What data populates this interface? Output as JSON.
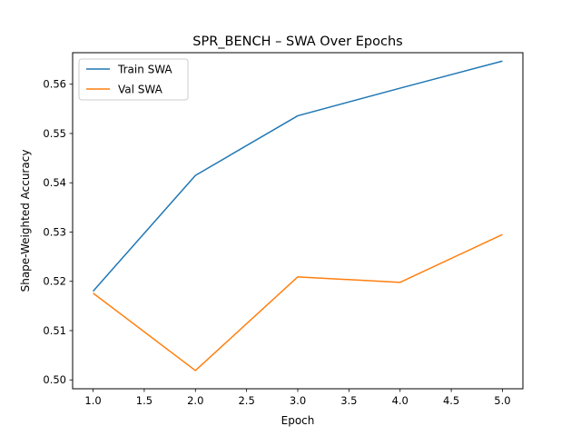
{
  "chart_data": {
    "type": "line",
    "title": "SPR_BENCH – SWA Over Epochs",
    "xlabel": "Epoch",
    "ylabel": "Shape-Weighted Accuracy",
    "xlim": [
      0.8,
      5.2
    ],
    "ylim": [
      0.4982,
      0.5664
    ],
    "xticks": [
      1.0,
      1.5,
      2.0,
      2.5,
      3.0,
      3.5,
      4.0,
      4.5,
      5.0
    ],
    "xtick_labels": [
      "1.0",
      "1.5",
      "2.0",
      "2.5",
      "3.0",
      "3.5",
      "4.0",
      "4.5",
      "5.0"
    ],
    "yticks": [
      0.5,
      0.51,
      0.52,
      0.53,
      0.54,
      0.55,
      0.56
    ],
    "ytick_labels": [
      "0.50",
      "0.51",
      "0.52",
      "0.53",
      "0.54",
      "0.55",
      "0.56"
    ],
    "grid": false,
    "legend_position": "top-left",
    "x": [
      1,
      2,
      3,
      4,
      5
    ],
    "series": [
      {
        "name": "Train SWA",
        "color": "#1f77b4",
        "values": [
          0.518,
          0.5415,
          0.5536,
          0.5592,
          0.5647
        ]
      },
      {
        "name": "Val SWA",
        "color": "#ff7f0e",
        "values": [
          0.5176,
          0.5019,
          0.5209,
          0.5198,
          0.5295
        ]
      }
    ]
  }
}
